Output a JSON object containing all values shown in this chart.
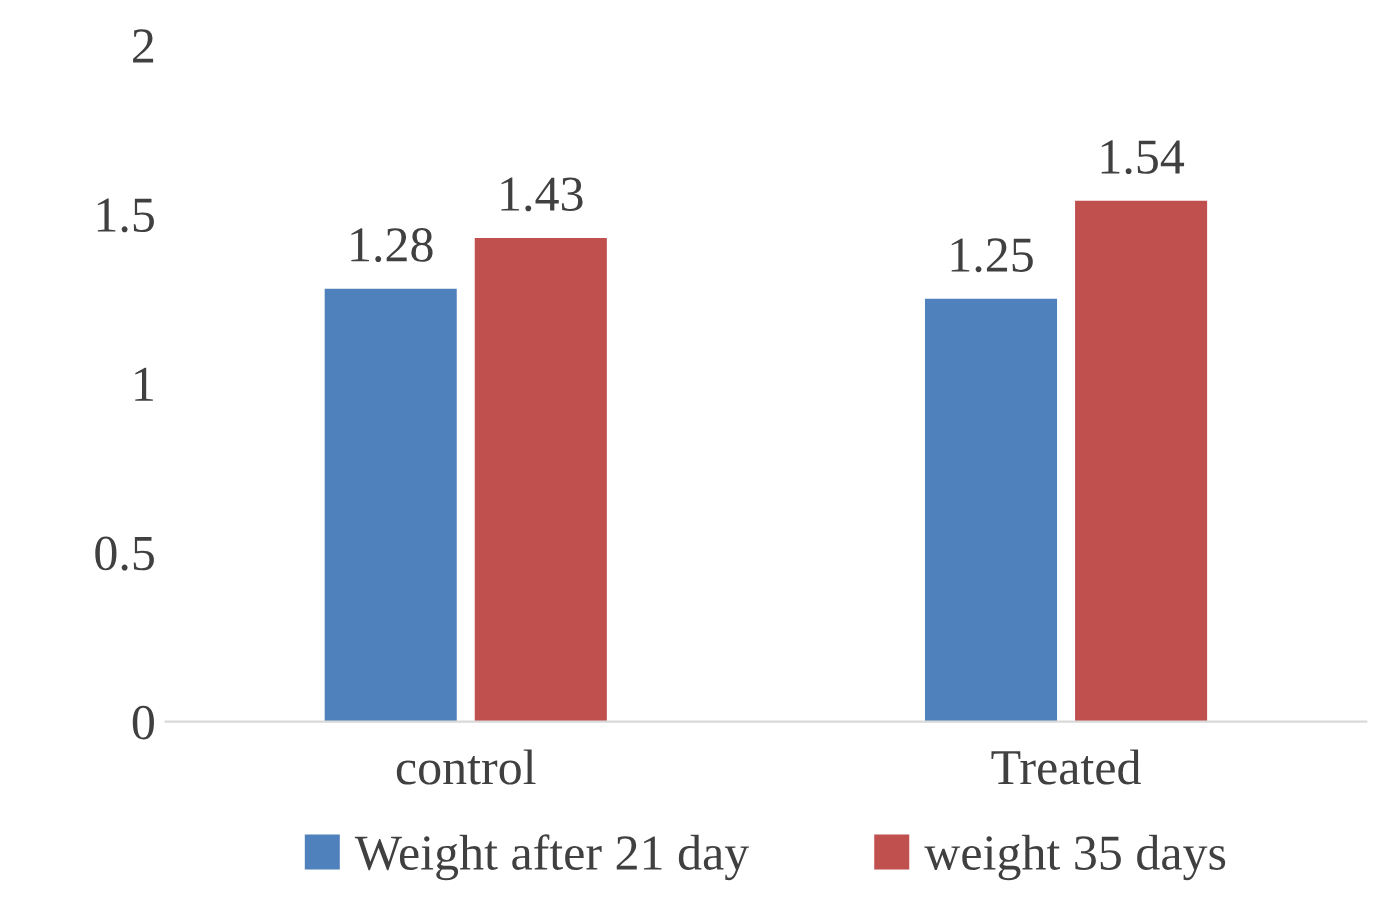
{
  "chart_data": {
    "type": "bar",
    "categories": [
      "control",
      "Treated"
    ],
    "series": [
      {
        "name": "Weight after 21 day",
        "color": "#4f81bd",
        "values": [
          1.28,
          1.25
        ]
      },
      {
        "name": "weight 35 days",
        "color": "#c0504d",
        "values": [
          1.43,
          1.54
        ]
      }
    ],
    "ylim": [
      0,
      2
    ],
    "yticks": [
      0,
      0.5,
      1,
      1.5,
      2
    ],
    "data_labels": true,
    "legend": "bottom",
    "grid": false
  }
}
